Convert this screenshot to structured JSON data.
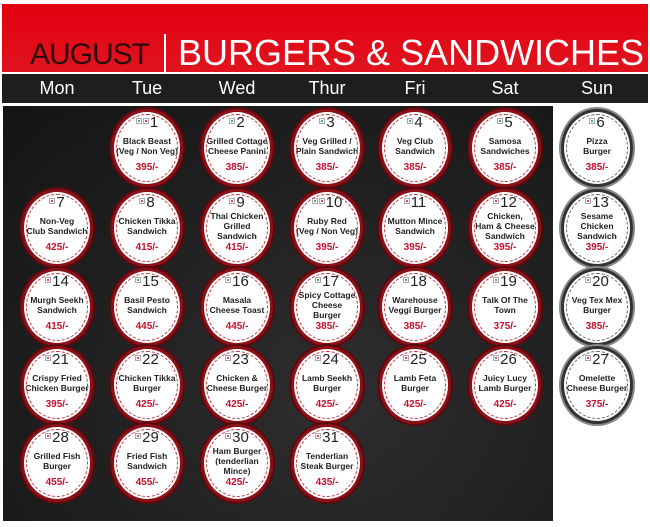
{
  "header": {
    "month": "AUGUST",
    "title": "BURGERS & SANDWICHES"
  },
  "weekdays": [
    "Mon",
    "Tue",
    "Wed",
    "Thur",
    "Fri",
    "Sat",
    "Sun"
  ],
  "colors": {
    "header_red": "#e3000f",
    "price_red": "#c8102e",
    "veg": "#1a9a3a",
    "non_veg": "#d01020",
    "board": "#1e1e1e"
  },
  "days": [
    {
      "day": "1",
      "weekday": 1,
      "row": 0,
      "lines": [
        "Black Beast",
        "(Veg / Non Veg)"
      ],
      "price": "395/-",
      "diet": [
        "veg",
        "non"
      ]
    },
    {
      "day": "2",
      "weekday": 2,
      "row": 0,
      "lines": [
        "Grilled Cottage",
        "Cheese Panini"
      ],
      "price": "385/-",
      "diet": [
        "veg"
      ]
    },
    {
      "day": "3",
      "weekday": 3,
      "row": 0,
      "lines": [
        "Veg Grilled /",
        "Plain Sandwich"
      ],
      "price": "385/-",
      "diet": [
        "veg"
      ]
    },
    {
      "day": "4",
      "weekday": 4,
      "row": 0,
      "lines": [
        "Veg Club",
        "Sandwich"
      ],
      "price": "385/-",
      "diet": [
        "veg"
      ]
    },
    {
      "day": "5",
      "weekday": 5,
      "row": 0,
      "lines": [
        "Samosa",
        "Sandwiches"
      ],
      "price": "385/-",
      "diet": [
        "veg"
      ]
    },
    {
      "day": "6",
      "weekday": 6,
      "row": 0,
      "lines": [
        "Pizza",
        "Burger"
      ],
      "price": "385/-",
      "diet": [
        "veg"
      ]
    },
    {
      "day": "7",
      "weekday": 0,
      "row": 1,
      "lines": [
        "Non-Veg",
        "Club Sandwich"
      ],
      "price": "425/-",
      "diet": [
        "non"
      ]
    },
    {
      "day": "8",
      "weekday": 1,
      "row": 1,
      "lines": [
        "Chicken Tikka",
        "Sandwich"
      ],
      "price": "415/-",
      "diet": [
        "non"
      ]
    },
    {
      "day": "9",
      "weekday": 2,
      "row": 1,
      "lines": [
        "Thai Chicken",
        "Grilled",
        "Sandwich"
      ],
      "price": "415/-",
      "diet": [
        "non"
      ]
    },
    {
      "day": "10",
      "weekday": 3,
      "row": 1,
      "lines": [
        "Ruby Red",
        "(Veg / Non Veg)"
      ],
      "price": "395/-",
      "diet": [
        "veg",
        "non"
      ]
    },
    {
      "day": "11",
      "weekday": 4,
      "row": 1,
      "lines": [
        "Mutton Mince",
        "Sandwich"
      ],
      "price": "395/-",
      "diet": [
        "non"
      ]
    },
    {
      "day": "12",
      "weekday": 5,
      "row": 1,
      "lines": [
        "Chicken,",
        "Ham & Cheese",
        "Sandwich"
      ],
      "price": "395/-",
      "diet": [
        "non"
      ]
    },
    {
      "day": "13",
      "weekday": 6,
      "row": 1,
      "lines": [
        "Sesame Chicken",
        "Sandwich"
      ],
      "price": "395/-",
      "diet": [
        "non"
      ]
    },
    {
      "day": "14",
      "weekday": 0,
      "row": 2,
      "lines": [
        "Murgh Seekh",
        "Sandwich"
      ],
      "price": "415/-",
      "diet": [
        "non"
      ]
    },
    {
      "day": "15",
      "weekday": 1,
      "row": 2,
      "lines": [
        "Basil Pesto",
        "Sandwich"
      ],
      "price": "445/-",
      "diet": [
        "veg"
      ]
    },
    {
      "day": "16",
      "weekday": 2,
      "row": 2,
      "lines": [
        "Masala",
        "Cheese Toast"
      ],
      "price": "445/-",
      "diet": [
        "veg"
      ]
    },
    {
      "day": "17",
      "weekday": 3,
      "row": 2,
      "lines": [
        "Spicy Cottage",
        "Cheese",
        "Burger"
      ],
      "price": "385/-",
      "diet": [
        "veg"
      ]
    },
    {
      "day": "18",
      "weekday": 4,
      "row": 2,
      "lines": [
        "Warehouse",
        "Veggi Burger"
      ],
      "price": "385/-",
      "diet": [
        "veg"
      ]
    },
    {
      "day": "19",
      "weekday": 5,
      "row": 2,
      "lines": [
        "Talk Of The",
        "Town"
      ],
      "price": "375/-",
      "diet": [
        "veg"
      ]
    },
    {
      "day": "20",
      "weekday": 6,
      "row": 2,
      "lines": [
        "Veg Tex Mex",
        "Burger"
      ],
      "price": "385/-",
      "diet": [
        "veg"
      ]
    },
    {
      "day": "21",
      "weekday": 0,
      "row": 3,
      "lines": [
        "Crispy Fried",
        "Chicken Burger"
      ],
      "price": "395/-",
      "diet": [
        "non"
      ]
    },
    {
      "day": "22",
      "weekday": 1,
      "row": 3,
      "lines": [
        "Chicken Tikka",
        "Burger"
      ],
      "price": "425/-",
      "diet": [
        "non"
      ]
    },
    {
      "day": "23",
      "weekday": 2,
      "row": 3,
      "lines": [
        "Chicken &",
        "Cheese Burger"
      ],
      "price": "425/-",
      "diet": [
        "non"
      ]
    },
    {
      "day": "24",
      "weekday": 3,
      "row": 3,
      "lines": [
        "Lamb Seekh",
        "Burger"
      ],
      "price": "425/-",
      "diet": [
        "non"
      ]
    },
    {
      "day": "25",
      "weekday": 4,
      "row": 3,
      "lines": [
        "Lamb Feta",
        "Burger"
      ],
      "price": "425/-",
      "diet": [
        "non"
      ]
    },
    {
      "day": "26",
      "weekday": 5,
      "row": 3,
      "lines": [
        "Juicy Lucy",
        "Lamb Burger"
      ],
      "price": "425/-",
      "diet": [
        "non"
      ]
    },
    {
      "day": "27",
      "weekday": 6,
      "row": 3,
      "lines": [
        "Omelette",
        "Cheese Burger"
      ],
      "price": "375/-",
      "diet": [
        "non"
      ]
    },
    {
      "day": "28",
      "weekday": 0,
      "row": 4,
      "lines": [
        "Grilled Fish",
        "Burger"
      ],
      "price": "455/-",
      "diet": [
        "non"
      ]
    },
    {
      "day": "29",
      "weekday": 1,
      "row": 4,
      "lines": [
        "Fried Fish",
        "Sandwich"
      ],
      "price": "455/-",
      "diet": [
        "non"
      ]
    },
    {
      "day": "30",
      "weekday": 2,
      "row": 4,
      "lines": [
        "Ham Burger",
        "(tenderlian",
        "Mince)"
      ],
      "price": "425/-",
      "diet": [
        "non"
      ]
    },
    {
      "day": "31",
      "weekday": 3,
      "row": 4,
      "lines": [
        "Tenderlian",
        "Steak Burger"
      ],
      "price": "435/-",
      "diet": [
        "non"
      ]
    }
  ]
}
